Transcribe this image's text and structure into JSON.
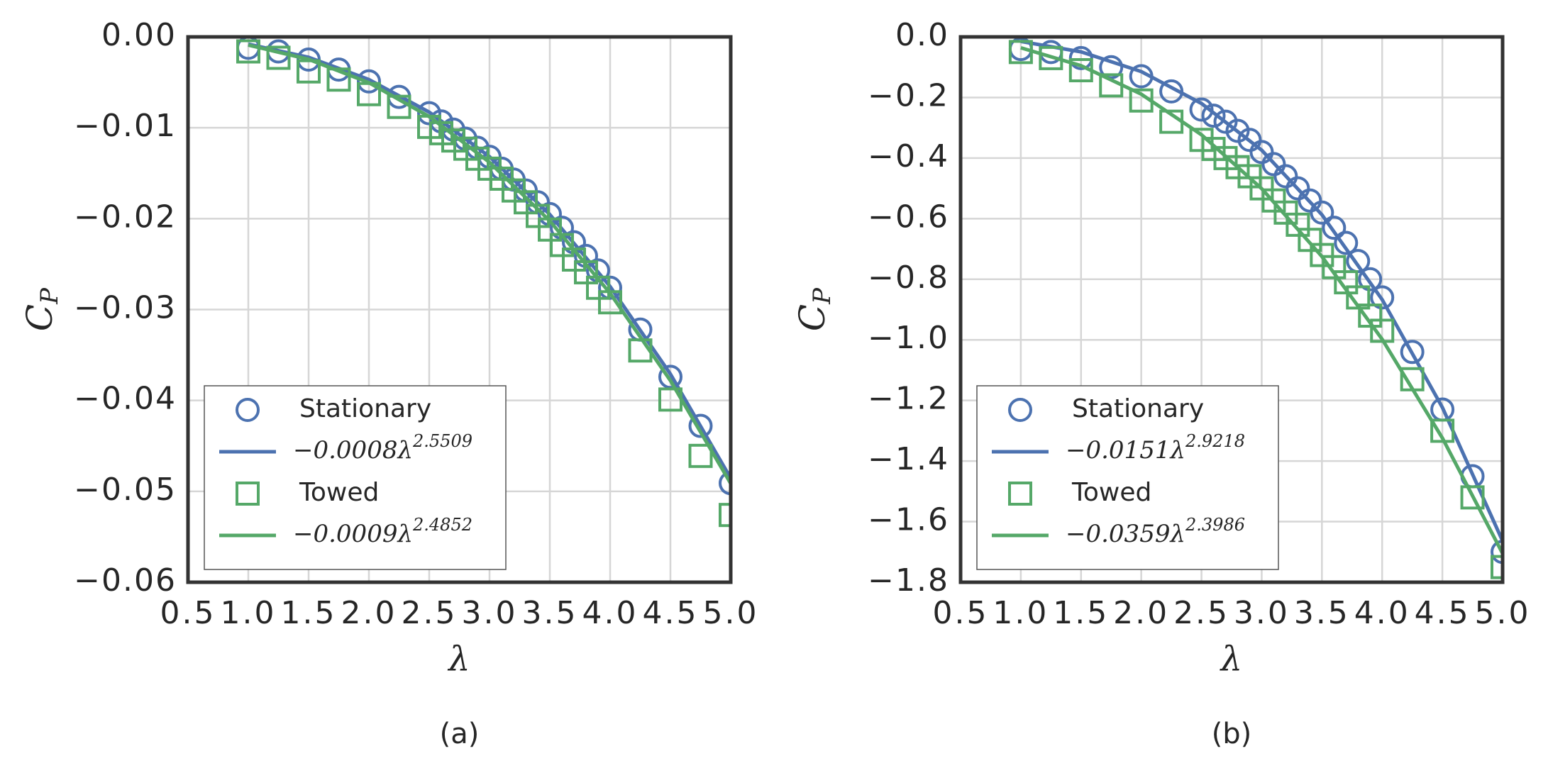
{
  "chart_data": [
    {
      "type": "line",
      "caption": "(a)",
      "xlabel": "λ",
      "ylabel": "C",
      "ylabel_sub": "P",
      "xlim": [
        0.5,
        5.0
      ],
      "ylim": [
        -0.06,
        0.0
      ],
      "grid": true,
      "legend": "lower left",
      "xticks": [
        {
          "value": 0.5,
          "label": "0.5"
        },
        {
          "value": 1.0,
          "label": "1.0"
        },
        {
          "value": 1.5,
          "label": "1.5"
        },
        {
          "value": 2.0,
          "label": "2.0"
        },
        {
          "value": 2.5,
          "label": "2.5"
        },
        {
          "value": 3.0,
          "label": "3.0"
        },
        {
          "value": 3.5,
          "label": "3.5"
        },
        {
          "value": 4.0,
          "label": "4.0"
        },
        {
          "value": 4.5,
          "label": "4.5"
        },
        {
          "value": 5.0,
          "label": "5.0"
        }
      ],
      "yticks": [
        {
          "value": 0.0,
          "label": "0.00"
        },
        {
          "value": -0.01,
          "label": "−0.01"
        },
        {
          "value": -0.02,
          "label": "−0.02"
        },
        {
          "value": -0.03,
          "label": "−0.03"
        },
        {
          "value": -0.04,
          "label": "−0.04"
        },
        {
          "value": -0.05,
          "label": "−0.05"
        },
        {
          "value": -0.06,
          "label": "−0.06"
        }
      ],
      "series": [
        {
          "name": "Stationary",
          "color": "#4c72b0",
          "marker": "circle",
          "x": [
            1.0,
            1.25,
            1.5,
            1.75,
            2.0,
            2.25,
            2.5,
            2.6,
            2.7,
            2.8,
            2.9,
            3.0,
            3.1,
            3.2,
            3.3,
            3.4,
            3.5,
            3.6,
            3.7,
            3.8,
            3.9,
            4.0,
            4.25,
            4.5,
            4.75,
            5.0
          ],
          "values": [
            -0.0012,
            -0.0016,
            -0.0025,
            -0.0036,
            -0.0049,
            -0.0066,
            -0.0084,
            -0.0093,
            -0.0102,
            -0.0112,
            -0.0122,
            -0.0132,
            -0.0145,
            -0.0157,
            -0.0169,
            -0.0182,
            -0.0195,
            -0.021,
            -0.0226,
            -0.0241,
            -0.0257,
            -0.0276,
            -0.0322,
            -0.0374,
            -0.0428,
            -0.0491
          ]
        },
        {
          "name": "−0.0008λ",
          "name_exponent": "2.5509",
          "color": "#4c72b0",
          "marker": "line",
          "x": [
            1.0,
            1.5,
            2.0,
            2.5,
            3.0,
            3.5,
            4.0,
            4.5,
            5.0
          ],
          "values": [
            -0.0008,
            -0.00225,
            -0.00469,
            -0.00828,
            -0.01318,
            -0.01954,
            -0.02747,
            -0.0371,
            -0.04857
          ]
        },
        {
          "name": "Towed",
          "color": "#55a868",
          "marker": "square",
          "x": [
            1.0,
            1.25,
            1.5,
            1.75,
            2.0,
            2.25,
            2.5,
            2.6,
            2.7,
            2.8,
            2.9,
            3.0,
            3.1,
            3.2,
            3.3,
            3.4,
            3.5,
            3.6,
            3.7,
            3.8,
            3.9,
            4.0,
            4.25,
            4.5,
            4.75,
            5.0
          ],
          "values": [
            -0.0016,
            -0.0023,
            -0.0038,
            -0.0047,
            -0.0063,
            -0.0077,
            -0.0099,
            -0.0106,
            -0.0114,
            -0.0123,
            -0.0134,
            -0.0145,
            -0.0156,
            -0.0169,
            -0.0182,
            -0.0197,
            -0.0212,
            -0.0229,
            -0.0245,
            -0.0259,
            -0.0276,
            -0.0292,
            -0.0345,
            -0.0399,
            -0.0461,
            -0.0526
          ]
        },
        {
          "name": "−0.0009λ",
          "name_exponent": "2.4852",
          "color": "#55a868",
          "marker": "line",
          "x": [
            1.0,
            1.5,
            2.0,
            2.5,
            3.0,
            3.5,
            4.0,
            4.5,
            5.0
          ],
          "values": [
            -0.0009,
            -0.00247,
            -0.00504,
            -0.00877,
            -0.0138,
            -0.02025,
            -0.02821,
            -0.03782,
            -0.04914
          ]
        }
      ]
    },
    {
      "type": "line",
      "caption": "(b)",
      "xlabel": "λ",
      "ylabel": "C",
      "ylabel_sub": "P",
      "xlim": [
        0.5,
        5.0
      ],
      "ylim": [
        -1.8,
        0.0
      ],
      "grid": true,
      "legend": "lower left",
      "xticks": [
        {
          "value": 0.5,
          "label": "0.5"
        },
        {
          "value": 1.0,
          "label": "1.0"
        },
        {
          "value": 1.5,
          "label": "1.5"
        },
        {
          "value": 2.0,
          "label": "2.0"
        },
        {
          "value": 2.5,
          "label": "2.5"
        },
        {
          "value": 3.0,
          "label": "3.0"
        },
        {
          "value": 3.5,
          "label": "3.5"
        },
        {
          "value": 4.0,
          "label": "4.0"
        },
        {
          "value": 4.5,
          "label": "4.5"
        },
        {
          "value": 5.0,
          "label": "5.0"
        }
      ],
      "yticks": [
        {
          "value": 0.0,
          "label": "0.0"
        },
        {
          "value": -0.2,
          "label": "−0.2"
        },
        {
          "value": -0.4,
          "label": "−0.4"
        },
        {
          "value": -0.6,
          "label": "−0.6"
        },
        {
          "value": -0.8,
          "label": "−0.8"
        },
        {
          "value": -1.0,
          "label": "−1.0"
        },
        {
          "value": -1.2,
          "label": "−1.2"
        },
        {
          "value": -1.4,
          "label": "−1.4"
        },
        {
          "value": -1.6,
          "label": "−1.6"
        },
        {
          "value": -1.8,
          "label": "−1.8"
        }
      ],
      "series": [
        {
          "name": "Stationary",
          "color": "#4c72b0",
          "marker": "circle",
          "x": [
            1.0,
            1.25,
            1.5,
            1.75,
            2.0,
            2.25,
            2.5,
            2.6,
            2.7,
            2.8,
            2.9,
            3.0,
            3.1,
            3.2,
            3.3,
            3.4,
            3.5,
            3.6,
            3.7,
            3.8,
            3.9,
            4.0,
            4.25,
            4.5,
            4.75,
            5.0
          ],
          "values": [
            -0.04,
            -0.05,
            -0.07,
            -0.1,
            -0.13,
            -0.18,
            -0.24,
            -0.26,
            -0.28,
            -0.31,
            -0.34,
            -0.38,
            -0.42,
            -0.46,
            -0.5,
            -0.54,
            -0.58,
            -0.63,
            -0.68,
            -0.74,
            -0.8,
            -0.86,
            -1.04,
            -1.23,
            -1.45,
            -1.7
          ]
        },
        {
          "name": "−0.0151λ",
          "name_exponent": "2.9218",
          "color": "#4c72b0",
          "marker": "line",
          "x": [
            1.0,
            1.5,
            2.0,
            2.5,
            3.0,
            3.5,
            4.0,
            4.5,
            5.0
          ],
          "values": [
            -0.0151,
            -0.0494,
            -0.1144,
            -0.2197,
            -0.374,
            -0.587,
            -0.867,
            -1.223,
            -1.664
          ]
        },
        {
          "name": "Towed",
          "color": "#55a868",
          "marker": "square",
          "x": [
            1.0,
            1.25,
            1.5,
            1.75,
            2.0,
            2.25,
            2.5,
            2.6,
            2.7,
            2.8,
            2.9,
            3.0,
            3.1,
            3.2,
            3.3,
            3.4,
            3.5,
            3.6,
            3.7,
            3.8,
            3.9,
            4.0,
            4.25,
            4.5,
            4.75,
            5.0
          ],
          "values": [
            -0.05,
            -0.07,
            -0.11,
            -0.16,
            -0.21,
            -0.28,
            -0.34,
            -0.37,
            -0.4,
            -0.43,
            -0.46,
            -0.5,
            -0.54,
            -0.58,
            -0.62,
            -0.67,
            -0.72,
            -0.76,
            -0.81,
            -0.86,
            -0.92,
            -0.97,
            -1.13,
            -1.3,
            -1.52,
            -1.75
          ]
        },
        {
          "name": "−0.0359λ",
          "name_exponent": "2.3986",
          "color": "#55a868",
          "marker": "line",
          "x": [
            1.0,
            1.5,
            2.0,
            2.5,
            3.0,
            3.5,
            4.0,
            4.5,
            5.0
          ],
          "values": [
            -0.0359,
            -0.095,
            -0.189,
            -0.323,
            -0.501,
            -0.725,
            -0.998,
            -1.324,
            -1.705
          ]
        }
      ]
    }
  ]
}
